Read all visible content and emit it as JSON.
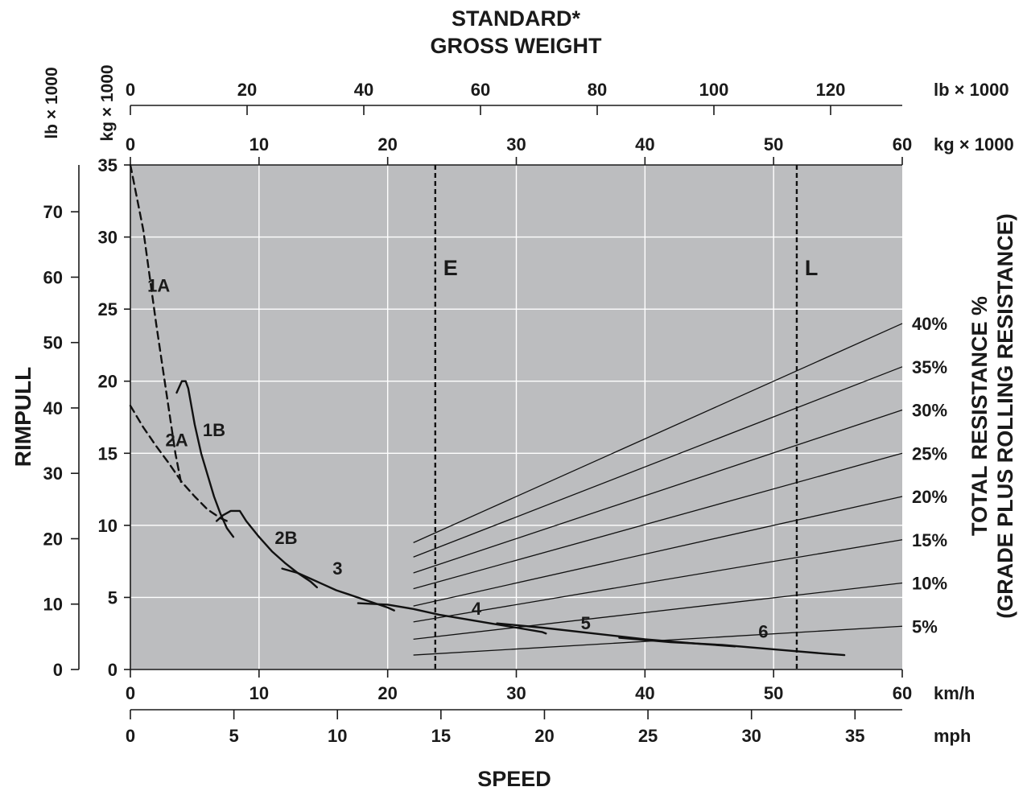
{
  "chart_data": {
    "type": "line",
    "title": "STANDARD*",
    "subtitle": "GROSS WEIGHT",
    "xlabel": "SPEED",
    "ylabel": "RIMPULL",
    "y2label_line1": "TOTAL RESISTANCE %",
    "y2label_line2": "(GRADE PLUS ROLLING RESISTANCE)",
    "grid": true,
    "x_kmh": {
      "unit": "km/h",
      "range": [
        0,
        60
      ],
      "ticks": [
        0,
        10,
        20,
        30,
        40,
        50,
        60
      ]
    },
    "x_mph": {
      "unit": "mph",
      "ticks": [
        0,
        5,
        10,
        15,
        20,
        25,
        30,
        35
      ]
    },
    "y_kg": {
      "axis_label": "kg × 1000",
      "range": [
        0,
        35
      ],
      "ticks": [
        0,
        5,
        10,
        15,
        20,
        25,
        30,
        35
      ]
    },
    "y_lb": {
      "axis_label": "lb × 1000",
      "ticks": [
        0,
        10,
        20,
        30,
        40,
        50,
        60,
        70
      ]
    },
    "weight_kg": {
      "unit": "kg × 1000",
      "range": [
        0,
        60
      ],
      "ticks": [
        0,
        10,
        20,
        30,
        40,
        50,
        60
      ]
    },
    "weight_lb": {
      "unit": "lb × 1000",
      "ticks": [
        0,
        20,
        40,
        60,
        80,
        100,
        120
      ]
    },
    "markers": [
      {
        "label": "E",
        "weight_kg": 23.7
      },
      {
        "label": "L",
        "weight_kg": 51.8
      }
    ],
    "resistance_lines": {
      "labels": [
        "40%",
        "35%",
        "30%",
        "25%",
        "20%",
        "15%",
        "10%",
        "5%"
      ],
      "start_kg": [
        8.8,
        7.8,
        6.7,
        5.6,
        4.4,
        3.3,
        2.1,
        1.0
      ],
      "end_kg": [
        24,
        21,
        18,
        15,
        12,
        9,
        6,
        3
      ],
      "weight_start_kg": 22,
      "weight_end_kg": 60
    },
    "series": [
      {
        "name": "1A",
        "style": "dashed",
        "x": [
          0,
          1,
          2,
          3,
          3.5,
          4
        ],
        "y": [
          35,
          30.5,
          24,
          18,
          15,
          12.7
        ]
      },
      {
        "name": "1B",
        "style": "solid",
        "x": [
          3.6,
          4,
          4.3,
          4.5,
          5,
          5.5,
          6,
          6.5,
          7,
          7.5,
          8
        ],
        "y": [
          19.2,
          20,
          20,
          19.5,
          17,
          15,
          13.5,
          12,
          10.8,
          9.8,
          9.2
        ]
      },
      {
        "name": "2A",
        "style": "dashed",
        "x": [
          0,
          1,
          2,
          3,
          4,
          5,
          6,
          7,
          7.5
        ],
        "y": [
          18.3,
          16.8,
          15.5,
          14.3,
          13,
          12,
          11.1,
          10.5,
          10.3
        ]
      },
      {
        "name": "2B",
        "style": "solid",
        "x": [
          6.7,
          7.2,
          7.8,
          8.5,
          9,
          10,
          11,
          12,
          13,
          14,
          14.5
        ],
        "y": [
          10.3,
          10.7,
          11,
          11,
          10.3,
          9.2,
          8.2,
          7.4,
          6.7,
          6.1,
          5.7
        ]
      },
      {
        "name": "3",
        "style": "solid",
        "x": [
          11.8,
          13,
          14,
          15,
          16,
          17,
          18,
          19,
          20,
          20.5
        ],
        "y": [
          7.0,
          6.7,
          6.3,
          5.9,
          5.5,
          5.2,
          4.9,
          4.6,
          4.3,
          4.1
        ]
      },
      {
        "name": "4",
        "style": "solid",
        "x": [
          17.7,
          20,
          22,
          24,
          26,
          28,
          30,
          32,
          32.3
        ],
        "y": [
          4.6,
          4.5,
          4.2,
          3.8,
          3.5,
          3.2,
          2.9,
          2.6,
          2.5
        ]
      },
      {
        "name": "5",
        "style": "solid",
        "x": [
          28.5,
          32,
          36,
          40,
          44,
          47
        ],
        "y": [
          3.2,
          2.9,
          2.5,
          2.1,
          1.8,
          1.6
        ]
      },
      {
        "name": "6",
        "style": "solid",
        "x": [
          38,
          42,
          46,
          50,
          54,
          55.5
        ],
        "y": [
          2.2,
          1.9,
          1.7,
          1.4,
          1.1,
          1.0
        ]
      }
    ]
  }
}
